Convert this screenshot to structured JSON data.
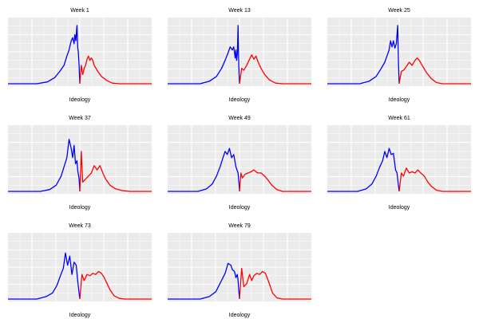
{
  "chart_data": {
    "type": "line",
    "layout": "facet-grid",
    "xlabel": "Ideology",
    "ylabel": "",
    "background_color": "#ebebeb",
    "grid": true,
    "grid_color": "#ffffff",
    "line_colors": [
      "#0000ff",
      "#ff0000"
    ],
    "x_range": [
      -1,
      1
    ],
    "y_range": [
      0,
      1
    ],
    "panels": [
      {
        "title": "Week 1",
        "series": [
          {
            "color": "#0000ff",
            "x": [
              -1.0,
              -0.6,
              -0.45,
              -0.35,
              -0.28,
              -0.22,
              -0.18,
              -0.15,
              -0.12,
              -0.1,
              -0.08,
              -0.07,
              -0.055,
              -0.04,
              -0.03,
              -0.02,
              -0.01,
              0.0
            ],
            "y": [
              0,
              0,
              0.03,
              0.1,
              0.2,
              0.3,
              0.45,
              0.55,
              0.7,
              0.75,
              0.65,
              0.8,
              0.7,
              0.95,
              0.6,
              0.5,
              0.3,
              0
            ]
          },
          {
            "color": "#ff0000",
            "x": [
              0.0,
              0.02,
              0.04,
              0.06,
              0.08,
              0.1,
              0.12,
              0.14,
              0.16,
              0.18,
              0.2,
              0.25,
              0.3,
              0.38,
              0.45,
              0.55,
              1.0
            ],
            "y": [
              0,
              0.3,
              0.15,
              0.25,
              0.3,
              0.4,
              0.45,
              0.38,
              0.42,
              0.38,
              0.3,
              0.2,
              0.12,
              0.05,
              0.01,
              0,
              0
            ]
          }
        ]
      },
      {
        "title": "Week 13",
        "series": [
          {
            "color": "#0000ff",
            "x": [
              -1.0,
              -0.55,
              -0.42,
              -0.32,
              -0.25,
              -0.2,
              -0.16,
              -0.13,
              -0.1,
              -0.08,
              -0.06,
              -0.05,
              -0.04,
              -0.03,
              -0.02,
              -0.01,
              0.0
            ],
            "y": [
              0,
              0,
              0.04,
              0.12,
              0.25,
              0.38,
              0.5,
              0.6,
              0.55,
              0.6,
              0.42,
              0.55,
              0.38,
              0.48,
              0.95,
              0.3,
              0
            ]
          },
          {
            "color": "#ff0000",
            "x": [
              0.0,
              0.03,
              0.06,
              0.1,
              0.14,
              0.17,
              0.2,
              0.23,
              0.26,
              0.3,
              0.35,
              0.42,
              0.5,
              0.6,
              1.0
            ],
            "y": [
              0,
              0.25,
              0.22,
              0.3,
              0.4,
              0.47,
              0.4,
              0.45,
              0.35,
              0.25,
              0.15,
              0.06,
              0.01,
              0,
              0
            ]
          }
        ]
      },
      {
        "title": "Week 25",
        "series": [
          {
            "color": "#0000ff",
            "x": [
              -1.0,
              -0.55,
              -0.42,
              -0.32,
              -0.25,
              -0.2,
              -0.17,
              -0.14,
              -0.12,
              -0.1,
              -0.08,
              -0.06,
              -0.04,
              -0.02,
              -0.01,
              0.0
            ],
            "y": [
              0,
              0,
              0.04,
              0.12,
              0.25,
              0.35,
              0.45,
              0.55,
              0.7,
              0.6,
              0.7,
              0.58,
              0.65,
              0.95,
              0.35,
              0
            ]
          },
          {
            "color": "#ff0000",
            "x": [
              0.0,
              0.03,
              0.06,
              0.1,
              0.14,
              0.18,
              0.22,
              0.25,
              0.28,
              0.32,
              0.38,
              0.45,
              0.52,
              0.6,
              1.0
            ],
            "y": [
              0,
              0.2,
              0.22,
              0.28,
              0.35,
              0.3,
              0.38,
              0.42,
              0.38,
              0.3,
              0.18,
              0.08,
              0.02,
              0,
              0
            ]
          }
        ]
      },
      {
        "title": "Week 37",
        "series": [
          {
            "color": "#0000ff",
            "x": [
              -1.0,
              -0.55,
              -0.42,
              -0.33,
              -0.26,
              -0.22,
              -0.18,
              -0.15,
              -0.12,
              -0.1,
              -0.08,
              -0.06,
              -0.04,
              -0.03,
              -0.01,
              0.0
            ],
            "y": [
              0,
              0,
              0.03,
              0.1,
              0.25,
              0.4,
              0.55,
              0.85,
              0.7,
              0.55,
              0.75,
              0.45,
              0.5,
              0.35,
              0.2,
              0
            ]
          },
          {
            "color": "#ff0000",
            "x": [
              0.0,
              0.02,
              0.04,
              0.08,
              0.12,
              0.16,
              0.2,
              0.24,
              0.28,
              0.32,
              0.36,
              0.42,
              0.5,
              0.6,
              0.7,
              1.0
            ],
            "y": [
              0,
              0.65,
              0.15,
              0.2,
              0.25,
              0.3,
              0.42,
              0.35,
              0.42,
              0.3,
              0.2,
              0.1,
              0.04,
              0.01,
              0,
              0
            ]
          }
        ]
      },
      {
        "title": "Week 49",
        "series": [
          {
            "color": "#0000ff",
            "x": [
              -1.0,
              -0.58,
              -0.46,
              -0.38,
              -0.32,
              -0.27,
              -0.23,
              -0.2,
              -0.17,
              -0.14,
              -0.11,
              -0.08,
              -0.05,
              -0.02,
              -0.005,
              0.0
            ],
            "y": [
              0,
              0,
              0.04,
              0.12,
              0.25,
              0.4,
              0.55,
              0.65,
              0.6,
              0.7,
              0.55,
              0.6,
              0.4,
              0.3,
              0.1,
              0
            ]
          },
          {
            "color": "#ff0000",
            "x": [
              0.0,
              0.02,
              0.04,
              0.08,
              0.12,
              0.16,
              0.2,
              0.25,
              0.3,
              0.35,
              0.4,
              0.45,
              0.52,
              0.6,
              1.0
            ],
            "y": [
              0,
              0.3,
              0.22,
              0.28,
              0.3,
              0.32,
              0.35,
              0.3,
              0.3,
              0.25,
              0.18,
              0.1,
              0.03,
              0,
              0
            ]
          }
        ]
      },
      {
        "title": "Week 61",
        "series": [
          {
            "color": "#0000ff",
            "x": [
              -1.0,
              -0.58,
              -0.46,
              -0.38,
              -0.32,
              -0.27,
              -0.23,
              -0.2,
              -0.17,
              -0.14,
              -0.11,
              -0.08,
              -0.05,
              -0.03,
              -0.01,
              0.0
            ],
            "y": [
              0,
              0,
              0.04,
              0.12,
              0.25,
              0.4,
              0.5,
              0.65,
              0.55,
              0.7,
              0.6,
              0.62,
              0.35,
              0.3,
              0.1,
              0
            ]
          },
          {
            "color": "#ff0000",
            "x": [
              0.0,
              0.03,
              0.06,
              0.1,
              0.14,
              0.18,
              0.22,
              0.26,
              0.3,
              0.35,
              0.4,
              0.45,
              0.52,
              0.6,
              1.0
            ],
            "y": [
              0,
              0.3,
              0.25,
              0.38,
              0.3,
              0.32,
              0.3,
              0.35,
              0.3,
              0.25,
              0.15,
              0.08,
              0.02,
              0,
              0
            ]
          }
        ]
      },
      {
        "title": "Week 73",
        "series": [
          {
            "color": "#0000ff",
            "x": [
              -1.0,
              -0.6,
              -0.47,
              -0.38,
              -0.32,
              -0.27,
              -0.23,
              -0.2,
              -0.17,
              -0.14,
              -0.11,
              -0.08,
              -0.05,
              -0.03,
              -0.01,
              0.0
            ],
            "y": [
              0,
              0,
              0.04,
              0.1,
              0.22,
              0.38,
              0.5,
              0.75,
              0.55,
              0.7,
              0.4,
              0.6,
              0.55,
              0.3,
              0.1,
              0
            ]
          },
          {
            "color": "#ff0000",
            "x": [
              0.0,
              0.03,
              0.06,
              0.1,
              0.14,
              0.18,
              0.22,
              0.26,
              0.3,
              0.34,
              0.38,
              0.42,
              0.48,
              0.55,
              0.62,
              1.0
            ],
            "y": [
              0,
              0.4,
              0.3,
              0.4,
              0.38,
              0.42,
              0.4,
              0.45,
              0.42,
              0.35,
              0.25,
              0.15,
              0.05,
              0.01,
              0,
              0
            ]
          }
        ]
      },
      {
        "title": "Week 79",
        "series": [
          {
            "color": "#0000ff",
            "x": [
              -1.0,
              -0.55,
              -0.42,
              -0.33,
              -0.26,
              -0.2,
              -0.16,
              -0.12,
              -0.1,
              -0.07,
              -0.05,
              -0.03,
              -0.02,
              -0.01,
              0.0
            ],
            "y": [
              0,
              0,
              0.04,
              0.12,
              0.28,
              0.42,
              0.58,
              0.55,
              0.48,
              0.45,
              0.35,
              0.4,
              0.3,
              0.15,
              0
            ]
          },
          {
            "color": "#ff0000",
            "x": [
              0.0,
              0.03,
              0.06,
              0.1,
              0.14,
              0.17,
              0.2,
              0.24,
              0.28,
              0.32,
              0.36,
              0.4,
              0.46,
              0.52,
              0.6,
              1.0
            ],
            "y": [
              0,
              0.5,
              0.2,
              0.25,
              0.4,
              0.3,
              0.38,
              0.42,
              0.4,
              0.45,
              0.42,
              0.3,
              0.1,
              0.02,
              0,
              0
            ]
          }
        ]
      }
    ]
  }
}
